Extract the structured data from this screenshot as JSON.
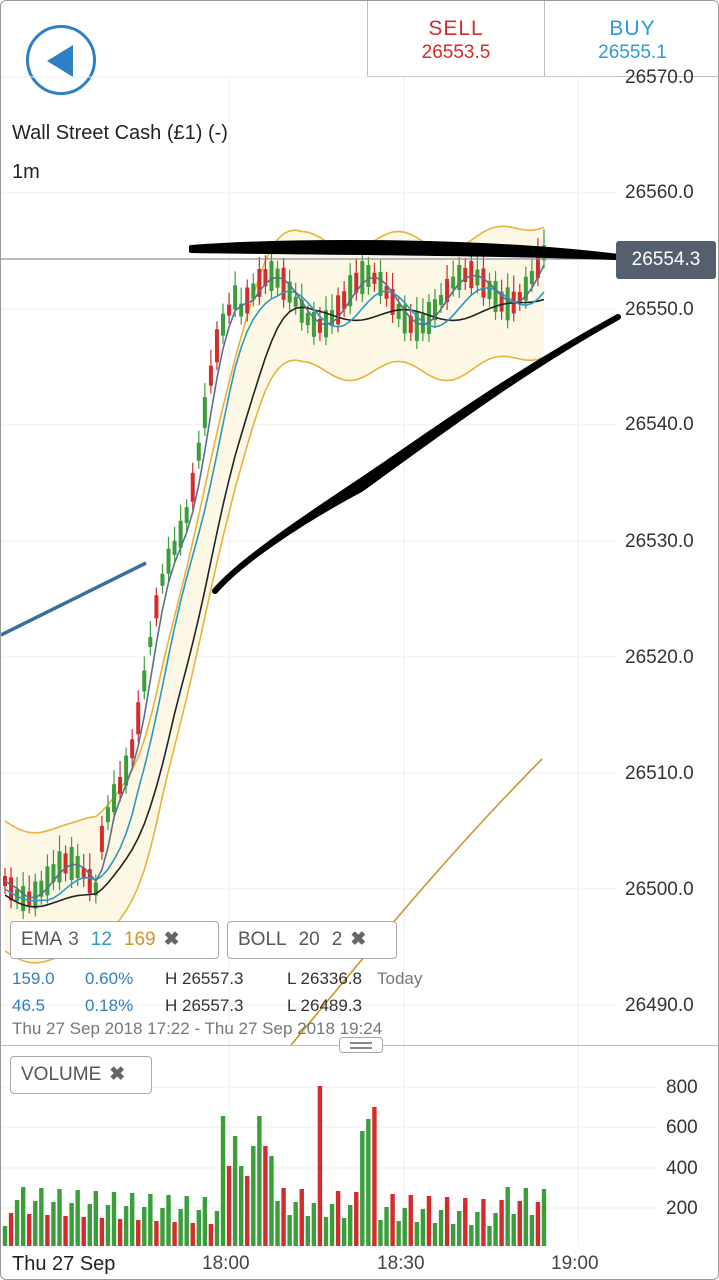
{
  "header": {
    "back_label": "back"
  },
  "trade": {
    "sell": {
      "label": "SELL",
      "value": "26553.5"
    },
    "buy": {
      "label": "BUY",
      "value": "26555.1"
    }
  },
  "instrument": {
    "name": "Wall Street Cash (£1) (-)",
    "timeframe": "1m"
  },
  "price_axis": [
    "26570.0",
    "26560.0",
    "26550.0",
    "26540.0",
    "26530.0",
    "26520.0",
    "26510.0",
    "26500.0",
    "26490.0"
  ],
  "current_price": "26554.3",
  "indicators": {
    "ema": {
      "label": "EMA",
      "p1": "3",
      "p2": "12",
      "p3": "169",
      "close": "✖"
    },
    "boll": {
      "label": "BOLL",
      "p1": "20",
      "p2": "2",
      "close": "✖"
    }
  },
  "stats": {
    "row1": {
      "a": "159.0",
      "b": "0.60%",
      "h": "H 26557.3",
      "l": "L 26336.8",
      "period": "Today"
    },
    "row2": {
      "a": "46.5",
      "b": "0.18%",
      "h": "H 26557.3",
      "l": "L 26489.3"
    },
    "range": "Thu 27 Sep 2018 17:22 - Thu 27 Sep 2018 19:24"
  },
  "volume": {
    "label": "VOLUME",
    "close": "✖",
    "axis": [
      "800",
      "600",
      "400",
      "200"
    ]
  },
  "time_axis": {
    "date": "Thu 27 Sep",
    "ticks": [
      "18:00",
      "18:30",
      "19:00"
    ]
  },
  "colors": {
    "up": "#3a9e3a",
    "down": "#d52b2b",
    "boll": "#e8b33a",
    "ema_fast": "#5b6e8a",
    "ema_mid": "#2a9bbd",
    "ema_slow": "#222222",
    "ema_long": "#c9962a"
  }
}
